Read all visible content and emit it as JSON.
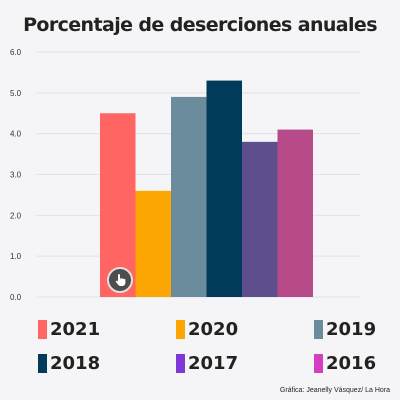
{
  "chart_data": {
    "type": "bar",
    "title": "Porcentaje de deserciones anuales",
    "categories": [
      "2021",
      "2020",
      "2019",
      "2018",
      "2017",
      "2016"
    ],
    "values": [
      4.5,
      2.6,
      4.9,
      5.3,
      3.8,
      4.1
    ],
    "colors": [
      "#fe6563",
      "#fda500",
      "#6a8c9c",
      "#003c5a",
      "#5e4e8d",
      "#b74a88"
    ],
    "legend_colors": [
      "#fe6563",
      "#fda500",
      "#6a8c9c",
      "#003c5a",
      "#7e38d9",
      "#d43ec0"
    ],
    "ylim": [
      0,
      6
    ],
    "yticks": [
      "0.0",
      "1.0",
      "2.0",
      "3.0",
      "4.0",
      "5.0",
      "6.0"
    ],
    "grid": true,
    "legend_position": "bottom"
  },
  "credit": "Gráfica: Jeanelly Vásquez/ La Hora",
  "overlay_icon": "touch-hand-icon"
}
